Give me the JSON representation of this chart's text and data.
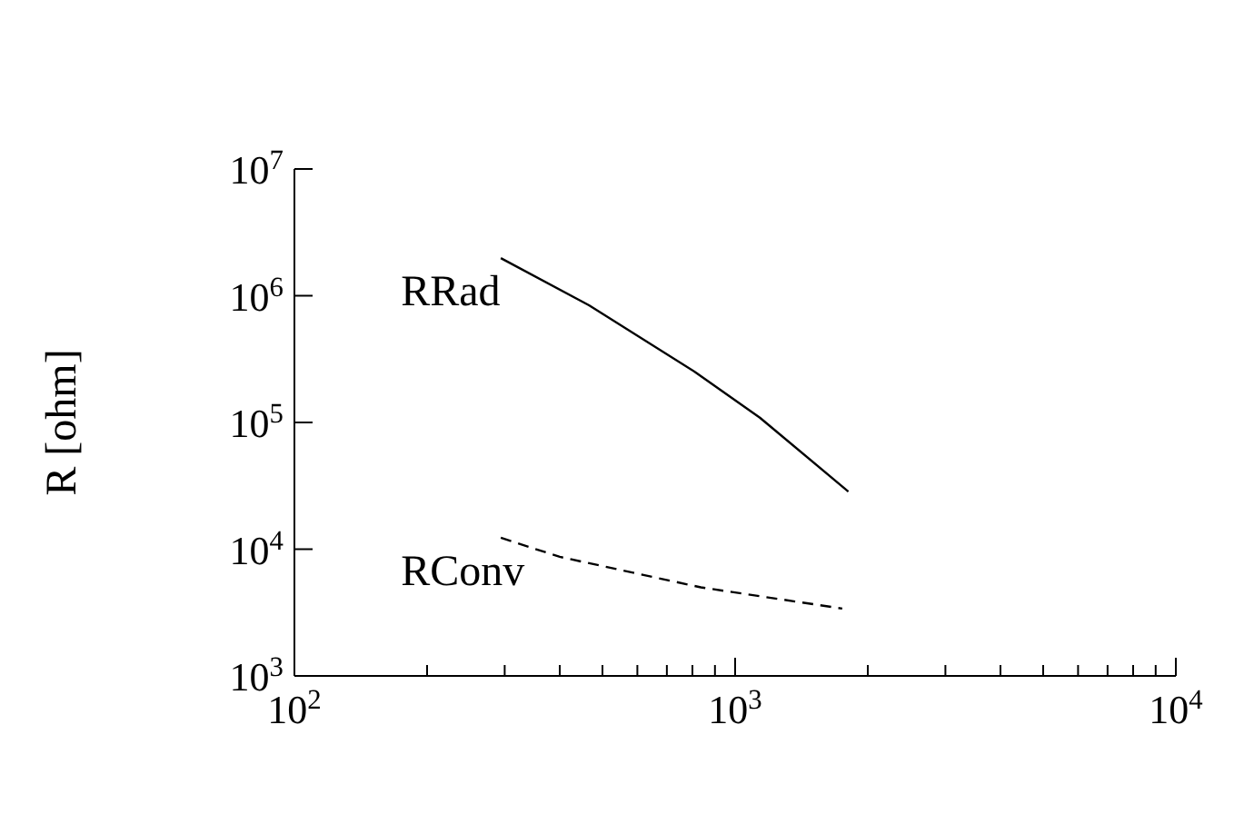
{
  "chart_data": {
    "type": "line",
    "ylabel": "R [ohm]",
    "log": "xy",
    "grid": false,
    "marker": "none",
    "legend": false,
    "xlim": [
      100,
      10000
    ],
    "ylim": [
      1000,
      10000000
    ],
    "xticks": [
      {
        "value": 100,
        "label": "10$^{2}$"
      },
      {
        "value": 200,
        "label": null
      },
      {
        "value": 300,
        "label": null
      },
      {
        "value": 400,
        "label": null
      },
      {
        "value": 500,
        "label": null
      },
      {
        "value": 600,
        "label": null
      },
      {
        "value": 700,
        "label": null
      },
      {
        "value": 800,
        "label": null
      },
      {
        "value": 900,
        "label": null
      },
      {
        "value": 1000,
        "label": "10$^{3}$"
      },
      {
        "value": 2000,
        "label": null
      },
      {
        "value": 3000,
        "label": null
      },
      {
        "value": 4000,
        "label": null
      },
      {
        "value": 5000,
        "label": null
      },
      {
        "value": 6000,
        "label": null
      },
      {
        "value": 7000,
        "label": null
      },
      {
        "value": 8000,
        "label": null
      },
      {
        "value": 9000,
        "label": null
      },
      {
        "value": 10000,
        "label": "10$^{4}$"
      }
    ],
    "yticks": [
      {
        "value": 1000,
        "label": "10$^{3}$"
      },
      {
        "value": 10000,
        "label": "10$^{4}$"
      },
      {
        "value": 100000,
        "label": "10$^{5}$"
      },
      {
        "value": 1000000,
        "label": "10$^{6}$"
      },
      {
        "value": 10000000,
        "label": "10$^{7}$"
      }
    ],
    "series": [
      {
        "name": "RRad",
        "color": "#000000",
        "line_style": "solid",
        "x": [
          294,
          466,
          811,
          1138,
          1807
        ],
        "values": [
          1980000,
          840000,
          250000,
          109000,
          28500
        ]
      },
      {
        "name": "RConv",
        "color": "#000000",
        "line_style": "dashed",
        "x": [
          294,
          400,
          836,
          1750
        ],
        "values": [
          12300,
          8700,
          5000,
          3400
        ]
      }
    ]
  }
}
